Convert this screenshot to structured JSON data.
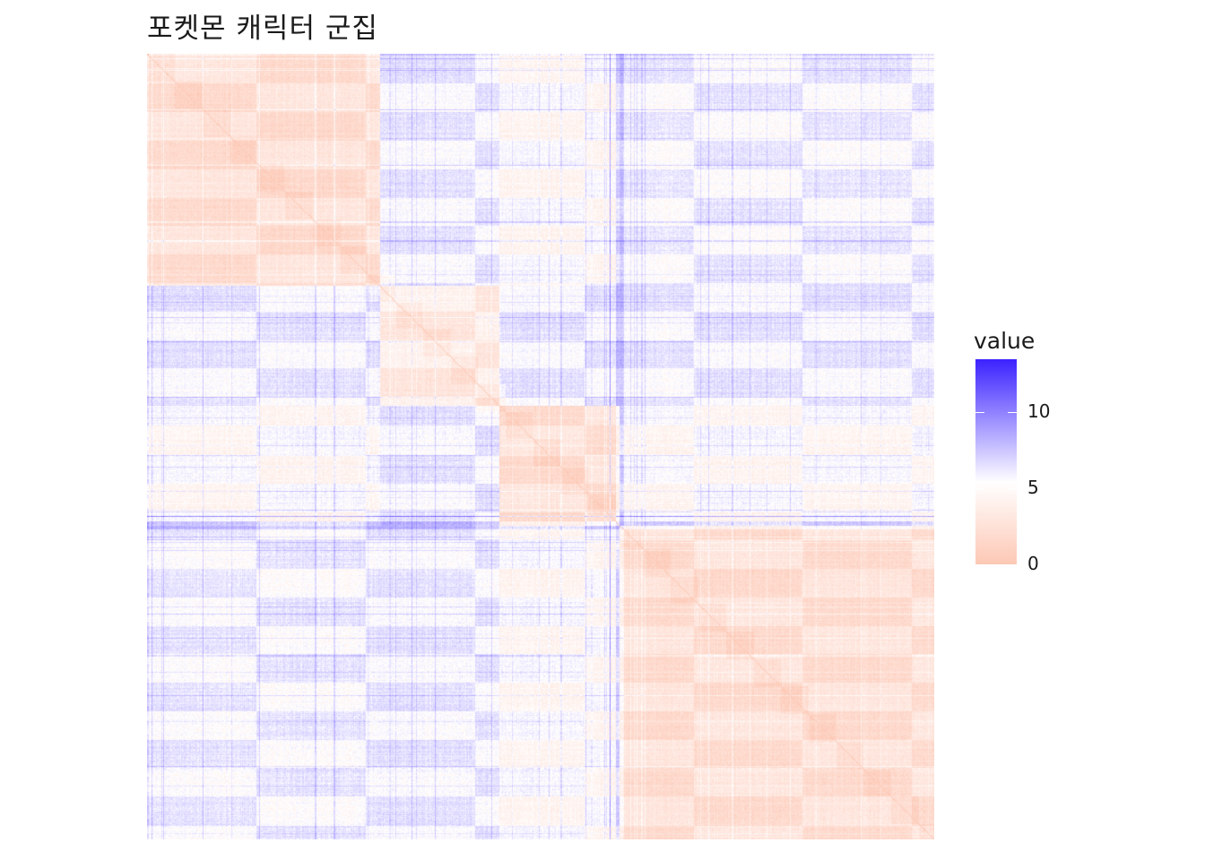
{
  "chart_data": {
    "type": "heatmap",
    "title": "포켓몬 캐릭터 군집",
    "xlabel": "",
    "ylabel": "",
    "legend": {
      "title": "value",
      "placement": "right",
      "ticks": [
        {
          "label": "10",
          "value": 10
        },
        {
          "label": "5",
          "value": 5
        },
        {
          "label": "0",
          "value": 0
        }
      ],
      "range": [
        0,
        13.5
      ]
    },
    "color_scale": {
      "low": "#fdc8b5",
      "mid": "#ffffff",
      "high": "#3b22ff",
      "midpoint": 5
    },
    "matrix": {
      "size": 800,
      "symmetric": true,
      "diagonal_value": 0,
      "cluster_boundaries": [
        0,
        236,
        358,
        480,
        800
      ],
      "note_off": ""
    },
    "grid": false
  }
}
